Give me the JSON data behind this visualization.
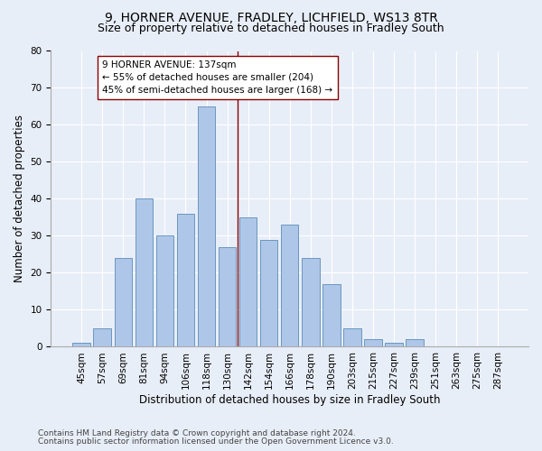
{
  "title1": "9, HORNER AVENUE, FRADLEY, LICHFIELD, WS13 8TR",
  "title2": "Size of property relative to detached houses in Fradley South",
  "xlabel": "Distribution of detached houses by size in Fradley South",
  "ylabel": "Number of detached properties",
  "footnote1": "Contains HM Land Registry data © Crown copyright and database right 2024.",
  "footnote2": "Contains public sector information licensed under the Open Government Licence v3.0.",
  "bar_labels": [
    "45sqm",
    "57sqm",
    "69sqm",
    "81sqm",
    "94sqm",
    "106sqm",
    "118sqm",
    "130sqm",
    "142sqm",
    "154sqm",
    "166sqm",
    "178sqm",
    "190sqm",
    "203sqm",
    "215sqm",
    "227sqm",
    "239sqm",
    "251sqm",
    "263sqm",
    "275sqm",
    "287sqm"
  ],
  "bar_values": [
    1,
    5,
    24,
    40,
    30,
    36,
    65,
    27,
    35,
    29,
    33,
    24,
    17,
    5,
    2,
    1,
    2,
    0,
    0,
    0,
    0
  ],
  "bar_color": "#aec6e8",
  "bar_edge_color": "#5b8db8",
  "vline_x": 7.5,
  "vline_color": "#8b0000",
  "annotation_text": "9 HORNER AVENUE: 137sqm\n← 55% of detached houses are smaller (204)\n45% of semi-detached houses are larger (168) →",
  "annotation_box_color": "#ffffff",
  "annotation_box_edge_color": "#8b0000",
  "ylim": [
    0,
    80
  ],
  "background_color": "#e8eef8",
  "grid_color": "#ffffff",
  "title1_fontsize": 10,
  "title2_fontsize": 9,
  "xlabel_fontsize": 8.5,
  "ylabel_fontsize": 8.5,
  "tick_fontsize": 7.5,
  "annotation_fontsize": 7.5,
  "footnote_fontsize": 6.5
}
